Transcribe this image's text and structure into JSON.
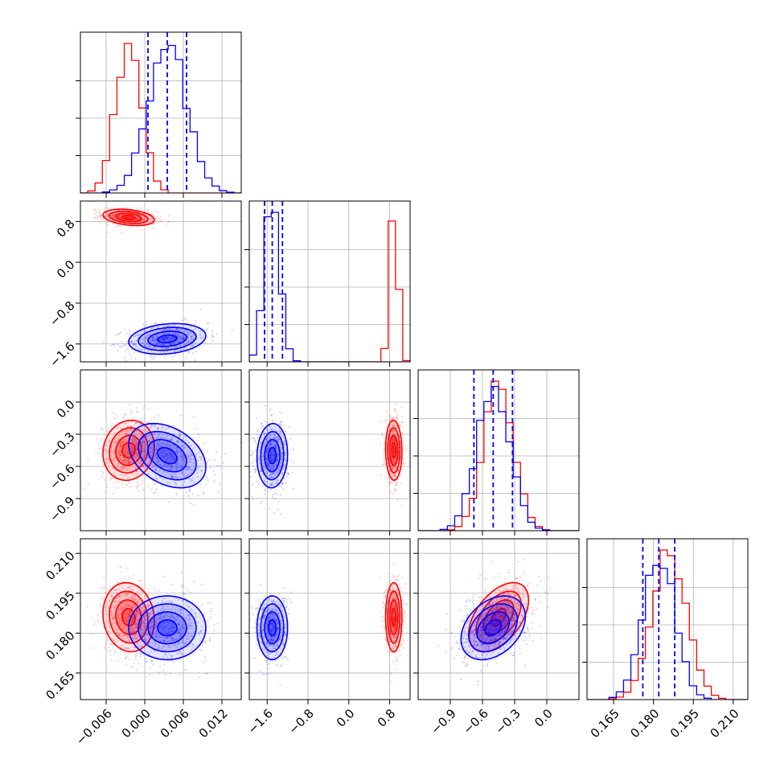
{
  "chart_data": {
    "type": "corner",
    "parameters": [
      {
        "name": "",
        "range": [
          -0.01,
          0.015
        ],
        "ticks": [
          -0.006,
          0.0,
          0.006,
          0.012
        ],
        "tick_labels": [
          "−0.006",
          "0.000",
          "0.006",
          "0.012"
        ]
      },
      {
        "name": "",
        "range": [
          -1.95,
          1.2
        ],
        "ticks": [
          -1.6,
          -0.8,
          0.0,
          0.8
        ],
        "tick_labels": [
          "−1.6",
          "−0.8",
          "0.0",
          "0.8"
        ]
      },
      {
        "name": "",
        "range": [
          -1.2,
          0.3
        ],
        "ticks": [
          -0.9,
          -0.6,
          -0.3,
          0.0
        ],
        "tick_labels": [
          "−0.9",
          "−0.6",
          "−0.3",
          "0.0"
        ]
      },
      {
        "name": "",
        "range": [
          0.155,
          0.2155
        ],
        "ticks": [
          0.165,
          0.18,
          0.195,
          0.21
        ],
        "tick_labels": [
          "0.165",
          "0.180",
          "0.195",
          "0.210"
        ]
      }
    ],
    "series": [
      {
        "name": "",
        "color": "#ff0000",
        "mean": [
          -0.0025,
          0.88,
          -0.45,
          0.186
        ],
        "std": [
          0.002,
          0.08,
          0.14,
          0.0065
        ],
        "corr": [
          [
            0,
            1,
            -0.3
          ],
          [
            0,
            2,
            0.1
          ],
          [
            0,
            3,
            -0.1
          ],
          [
            1,
            2,
            -0.05
          ],
          [
            1,
            3,
            0.0
          ],
          [
            2,
            3,
            0.5
          ]
        ],
        "quantiles_shown": false
      },
      {
        "name": "",
        "color": "#0000ff",
        "mean": [
          0.0035,
          -1.5,
          -0.5,
          0.182
        ],
        "std": [
          0.003,
          0.15,
          0.15,
          0.006
        ],
        "corr": [
          [
            0,
            1,
            0.2
          ],
          [
            0,
            2,
            -0.35
          ],
          [
            0,
            3,
            0.0
          ],
          [
            1,
            2,
            0.05
          ],
          [
            1,
            3,
            0.0
          ],
          [
            2,
            3,
            0.35
          ]
        ],
        "quantiles": [
          [
            0.0005,
            0.0035,
            0.0065
          ],
          [
            -1.65,
            -1.5,
            -1.3
          ],
          [
            -0.68,
            -0.5,
            -0.32
          ],
          [
            0.176,
            0.182,
            0.188
          ]
        ]
      }
    ],
    "grid": true,
    "legend": "none"
  }
}
